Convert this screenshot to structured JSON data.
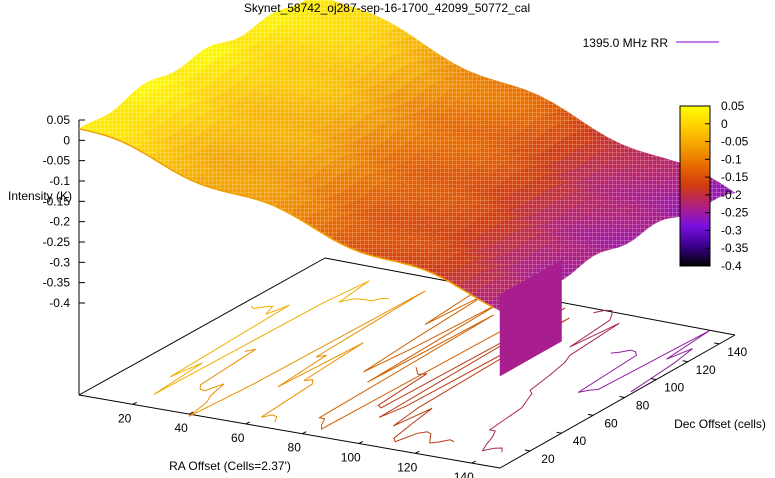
{
  "chart_data": {
    "type": "surface3d",
    "title": "Skynet_58742_oj287-sep-16-1700_42099_50772_cal",
    "legend": {
      "label": "1395.0 MHz RR",
      "placement": "top-right",
      "color": "#9b30d8"
    },
    "xlabel": "RA Offset (Cells=2.37')",
    "ylabel": "Dec Offset (cells)",
    "zlabel": "Intensity (K)",
    "x_ticks": [
      "20",
      "40",
      "60",
      "80",
      "100",
      "120",
      "140"
    ],
    "y_ticks": [
      "20",
      "40",
      "60",
      "80",
      "100",
      "120",
      "140"
    ],
    "z_ticks": [
      "0.05",
      "0",
      "-0.05",
      "-0.1",
      "-0.15",
      "-0.2",
      "-0.25",
      "-0.3",
      "-0.35",
      "-0.4"
    ],
    "xlim": [
      1,
      150
    ],
    "ylim": [
      1,
      150
    ],
    "zlim": [
      -0.4,
      0.05
    ],
    "colorbar": {
      "range": [
        -0.4,
        0.05
      ],
      "ticks": [
        "0.05",
        "0",
        "-0.05",
        "-0.1",
        "-0.15",
        "-0.2",
        "-0.25",
        "-0.3",
        "-0.35",
        "-0.4"
      ],
      "colors": [
        "#000000",
        "#3a008c",
        "#7a10e0",
        "#b02080",
        "#d03a10",
        "#e86a00",
        "#f5a000",
        "#ffd000",
        "#ffff00"
      ]
    },
    "surface_corners": {
      "ra1_dec1": 0.02,
      "ra150_dec1": -0.22,
      "ra1_dec150": 0.05,
      "ra150_dec150": -0.28
    },
    "step_edge": {
      "ra": 150,
      "dec_range": [
        1,
        40
      ],
      "top": -0.2,
      "bottom": -0.4
    },
    "contours": [
      {
        "level": 0.0,
        "color": "#f0b000"
      },
      {
        "level": -0.05,
        "color": "#e89000"
      },
      {
        "level": -0.1,
        "color": "#d06000"
      },
      {
        "level": -0.15,
        "color": "#b83a10"
      },
      {
        "level": -0.2,
        "color": "#a82a50"
      },
      {
        "level": -0.25,
        "color": "#9020a0"
      },
      {
        "level": -0.3,
        "color": "#8020c8"
      },
      {
        "level": -0.35,
        "color": "#7020d8"
      }
    ]
  }
}
